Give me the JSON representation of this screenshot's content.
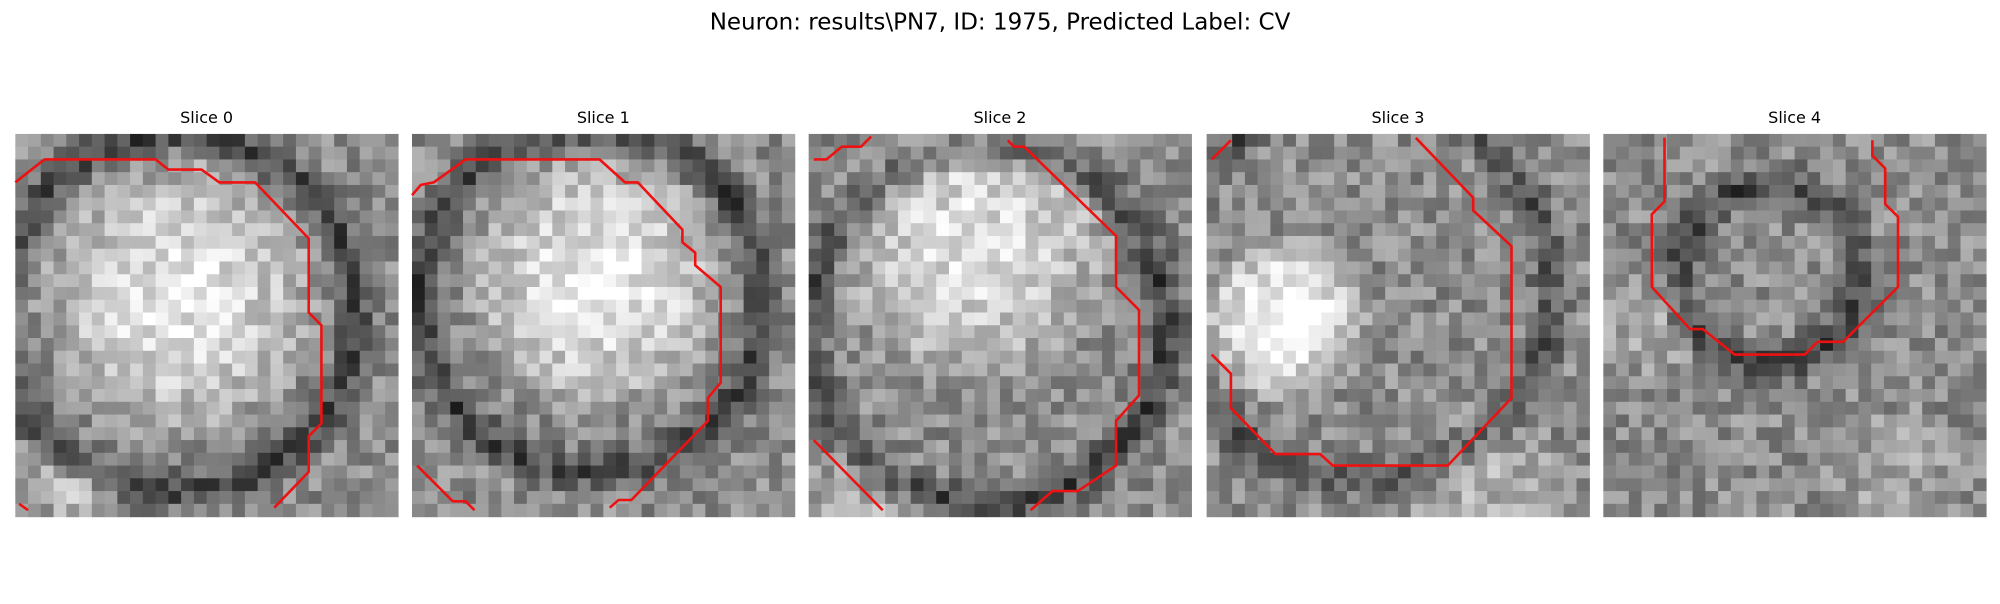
{
  "header": {
    "title": "Neuron: results\\PN7, ID: 1975, Predicted Label: CV"
  },
  "panels": [
    {
      "title": "Slice 0"
    },
    {
      "title": "Slice 1"
    },
    {
      "title": "Slice 2"
    },
    {
      "title": "Slice 3"
    },
    {
      "title": "Slice 4"
    }
  ]
}
